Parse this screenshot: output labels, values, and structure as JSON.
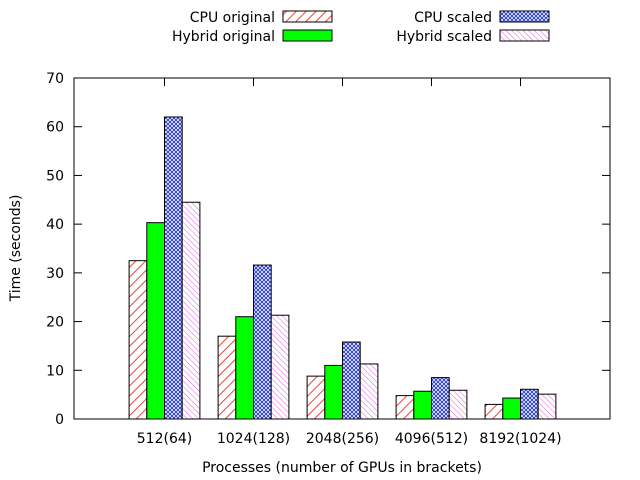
{
  "chart_data": {
    "type": "bar",
    "categories": [
      "512(64)",
      "1024(128)",
      "2048(256)",
      "4096(512)",
      "8192(1024)"
    ],
    "series": [
      {
        "name": "CPU original",
        "values": [
          32.5,
          17.0,
          8.8,
          4.8,
          3.0
        ],
        "color": "#e8453c",
        "pattern": "diagonal-hatch"
      },
      {
        "name": "Hybrid original",
        "values": [
          40.3,
          21.0,
          11.0,
          5.7,
          4.3
        ],
        "color": "#00ff00",
        "pattern": "solid"
      },
      {
        "name": "CPU scaled",
        "values": [
          62.0,
          31.6,
          15.8,
          8.5,
          6.1
        ],
        "color": "#2a3fd6",
        "pattern": "crosshatch"
      },
      {
        "name": "Hybrid scaled",
        "values": [
          44.5,
          21.3,
          11.3,
          5.9,
          5.1
        ],
        "color": "#e060e0",
        "pattern": "fine-diagonal"
      }
    ],
    "xlabel": "Processes (number of GPUs in brackets)",
    "ylabel": "Time (seconds)",
    "ylim": [
      0,
      70
    ],
    "yticks": [
      "0",
      "10",
      "20",
      "30",
      "40",
      "50",
      "60",
      "70"
    ],
    "grid": false,
    "legend_position": "top-center"
  }
}
